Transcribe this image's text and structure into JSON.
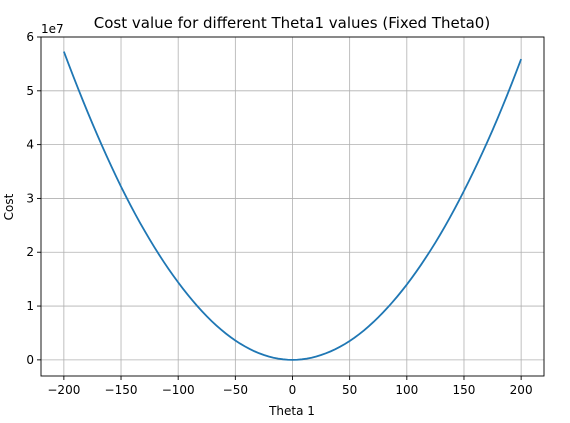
{
  "chart_data": {
    "type": "line",
    "title": "Cost value for different Theta1 values (Fixed Theta0)",
    "xlabel": "Theta 1",
    "ylabel": "Cost",
    "y_offset_label": "1e7",
    "xlim": [
      -220,
      220
    ],
    "ylim": [
      -0.3,
      6.0
    ],
    "y_scale_factor": 10000000,
    "xticks": [
      -200,
      -150,
      -100,
      -50,
      0,
      50,
      100,
      150,
      200
    ],
    "yticks": [
      0,
      1,
      2,
      3,
      4,
      5,
      6
    ],
    "grid": true,
    "series": [
      {
        "color": "#1f77b4",
        "x": [
          -200,
          -175,
          -150,
          -125,
          -100,
          -75,
          -50,
          -25,
          0,
          25,
          50,
          75,
          100,
          125,
          150,
          175,
          200
        ],
        "y": [
          57300000,
          43900000,
          32200000,
          22400000,
          14400000,
          8100000,
          3600000,
          900000,
          0,
          900000,
          3500000,
          7900000,
          14000000,
          21800000,
          31400000,
          42700000,
          55900000
        ]
      }
    ]
  }
}
